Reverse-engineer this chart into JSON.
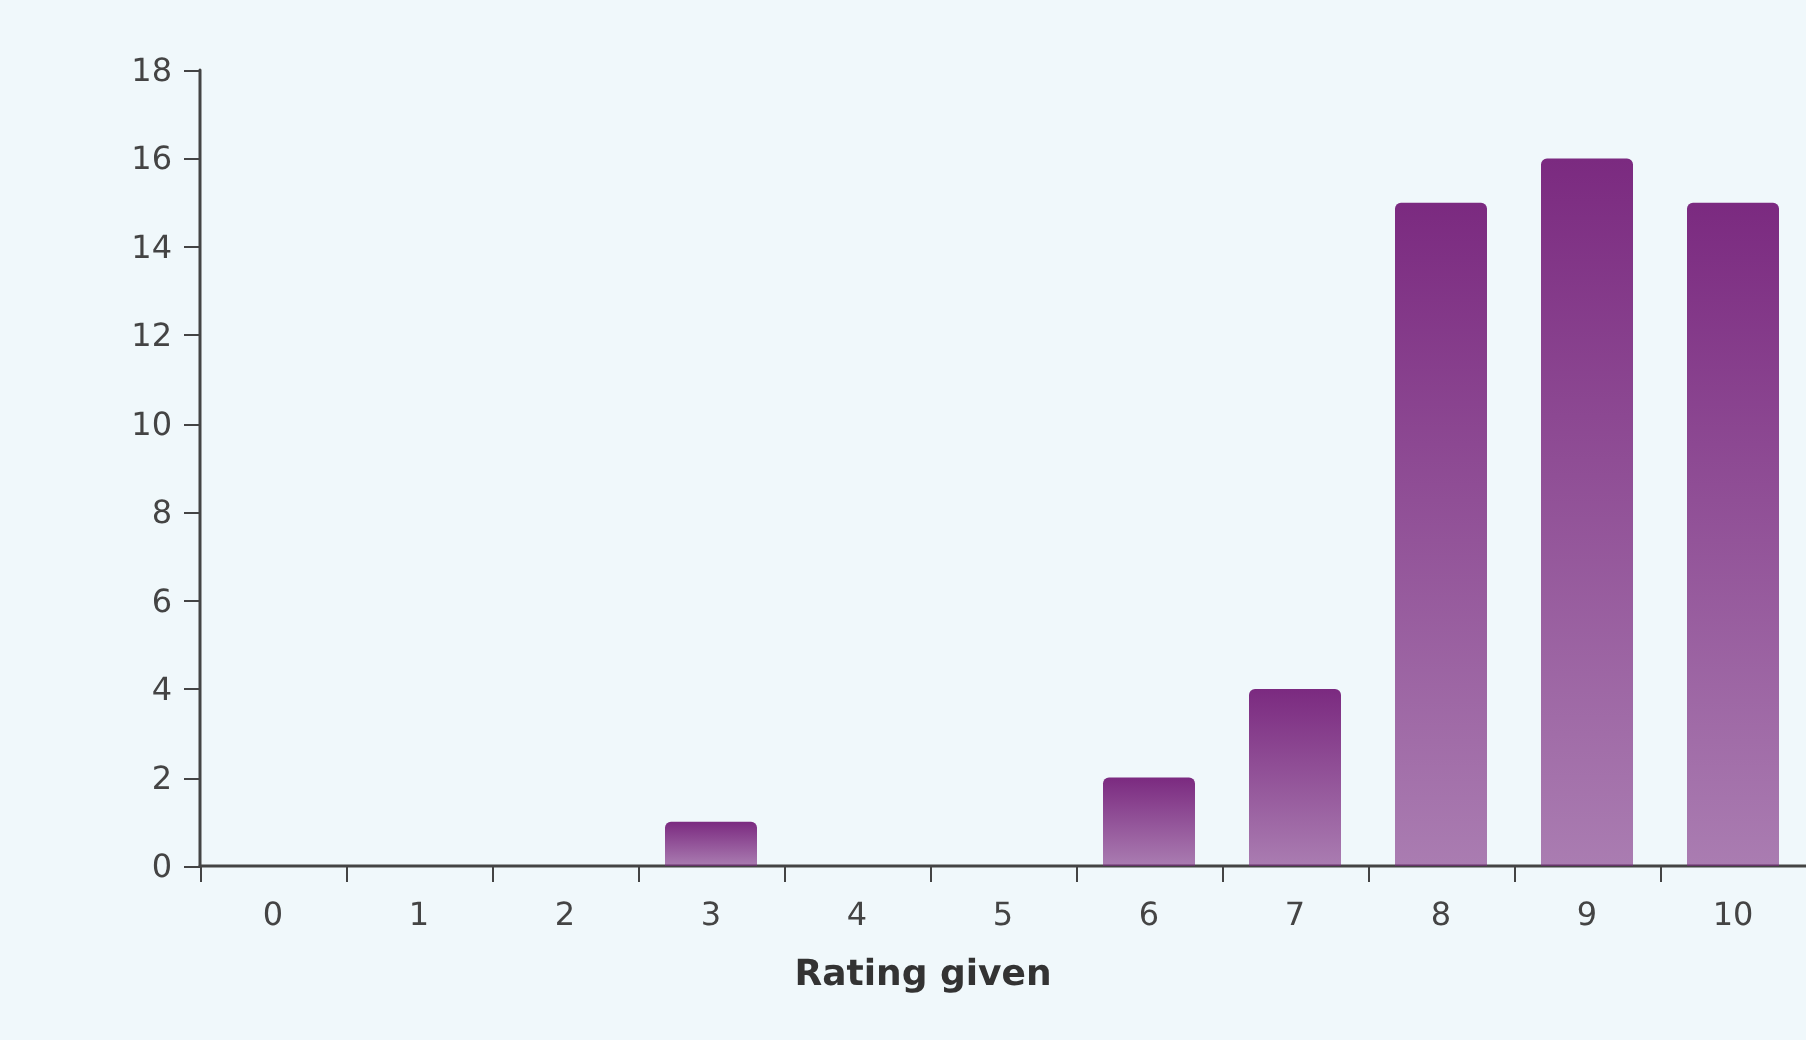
{
  "chart_data": {
    "type": "bar",
    "xlabel": "Rating given",
    "categories": [
      "0",
      "1",
      "2",
      "3",
      "4",
      "5",
      "6",
      "7",
      "8",
      "9",
      "10"
    ],
    "values": [
      0,
      0,
      0,
      1,
      0,
      0,
      2,
      4,
      15,
      16,
      15
    ],
    "color": "#7b2a80",
    "ylim": [
      0,
      18
    ],
    "yticks": [
      0,
      2,
      4,
      6,
      8,
      10,
      12,
      14,
      16,
      18
    ],
    "grid": false
  }
}
